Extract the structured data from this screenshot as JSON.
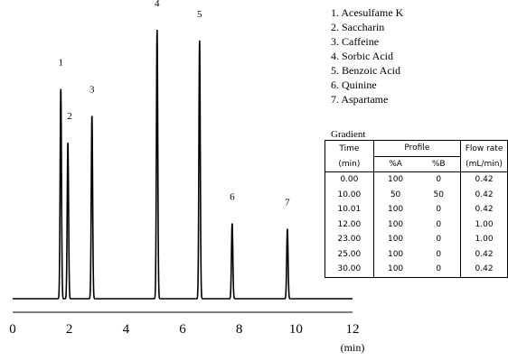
{
  "chart_data": {
    "type": "line",
    "xlabel": "(min)",
    "xlim": [
      0,
      12
    ],
    "x_ticks": [
      "0",
      "2",
      "4",
      "6",
      "8",
      "10",
      "12"
    ],
    "ylabel": "",
    "grid": false,
    "legend_position": "top-right",
    "peaks": [
      {
        "label": "1",
        "name": "Acesulfame K",
        "rt": 1.7,
        "height": 0.78
      },
      {
        "label": "2",
        "name": "Saccharin",
        "rt": 1.95,
        "height": 0.58
      },
      {
        "label": "3",
        "name": "Caffeine",
        "rt": 2.8,
        "height": 0.68
      },
      {
        "label": "4",
        "name": "Sorbic Acid",
        "rt": 5.1,
        "height": 1.0
      },
      {
        "label": "5",
        "name": "Benzoic Acid",
        "rt": 6.6,
        "height": 0.96
      },
      {
        "label": "6",
        "name": "Quinine",
        "rt": 7.75,
        "height": 0.28
      },
      {
        "label": "7",
        "name": "Aspartame",
        "rt": 9.7,
        "height": 0.26
      }
    ],
    "legend": [
      "1. Acesulfame K",
      "2. Saccharin",
      "3. Caffeine",
      "4. Sorbic Acid",
      "5. Benzoic Acid",
      "6. Quinine",
      "7. Aspartame"
    ]
  },
  "gradient": {
    "title": "Gradient",
    "headers": {
      "time": "Time",
      "time_unit": "(min)",
      "profile": "Profile",
      "a": "%A",
      "b": "%B",
      "flow": "Flow rate",
      "flow_unit": "(mL/min)"
    },
    "rows": [
      [
        "0.00",
        "100",
        "0",
        "0.42"
      ],
      [
        "10.00",
        "50",
        "50",
        "0.42"
      ],
      [
        "10.01",
        "100",
        "0",
        "0.42"
      ],
      [
        "12.00",
        "100",
        "0",
        "1.00"
      ],
      [
        "23.00",
        "100",
        "0",
        "1.00"
      ],
      [
        "25.00",
        "100",
        "0",
        "0.42"
      ],
      [
        "30.00",
        "100",
        "0",
        "0.42"
      ]
    ]
  }
}
